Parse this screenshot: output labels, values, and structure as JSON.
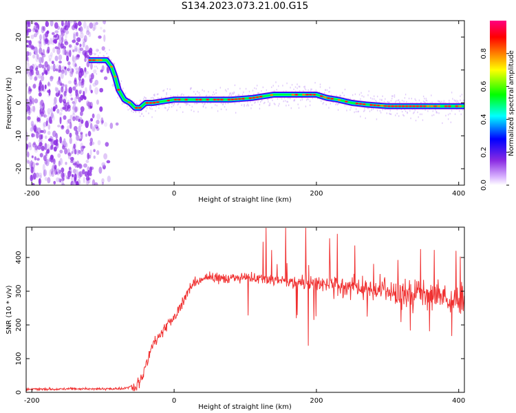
{
  "title": "S134.2023.073.21.00.G15",
  "colors": {
    "snr_line": "#f03030",
    "scatter_noise": "#8a2be2",
    "colormap": [
      "#ffffff",
      "#d9b3ff",
      "#8a2be2",
      "#0000ff",
      "#00ffff",
      "#00ff00",
      "#ffff00",
      "#ff8000",
      "#ff0000",
      "#ff0080"
    ]
  },
  "chart_data": [
    {
      "type": "heatmap",
      "title": "",
      "xlabel": "Height of straight line (km)",
      "ylabel": "Frequency (Hz)",
      "xlim": [
        -208,
        408
      ],
      "ylim": [
        -25,
        25
      ],
      "x_ticks": [
        -200,
        0,
        200,
        400
      ],
      "y_ticks": [
        -20,
        -10,
        0,
        10,
        20
      ],
      "grid": false,
      "series": [
        {
          "description": "Dominant frequency ridge (peak normalized amplitude) versus height",
          "x": [
            -120,
            -105,
            -95,
            -88,
            -83,
            -78,
            -70,
            -62,
            -55,
            -48,
            -40,
            -30,
            -15,
            0,
            20,
            50,
            80,
            110,
            140,
            170,
            200,
            215,
            230,
            250,
            270,
            300,
            330,
            360,
            380,
            400,
            408
          ],
          "y": [
            13,
            13,
            13,
            11,
            8,
            4,
            1,
            0,
            -1.5,
            -1.5,
            0,
            0,
            0.5,
            1,
            1,
            1,
            1,
            1.5,
            2.5,
            2.5,
            2.5,
            1.5,
            1,
            0,
            -0.5,
            -1,
            -1,
            -1,
            -1,
            -1,
            -1
          ]
        }
      ],
      "colorbar": {
        "label": "Normalized spectral amplitude",
        "range": [
          0,
          1
        ],
        "ticks": [
          0.0,
          0.2,
          0.4,
          0.6,
          0.8
        ]
      }
    },
    {
      "type": "line",
      "title": "",
      "xlabel": "Height of straight line (km)",
      "ylabel": "SNR (10 * v/v)",
      "xlim": [
        -208,
        408
      ],
      "ylim": [
        0,
        490
      ],
      "x_ticks": [
        -200,
        0,
        200,
        400
      ],
      "y_ticks": [
        0,
        100,
        200,
        300,
        400
      ],
      "grid": false,
      "series": [
        {
          "description": "SNR trend (center of noisy trace) versus height",
          "x": [
            -208,
            -150,
            -100,
            -70,
            -55,
            -45,
            -40,
            -30,
            -20,
            -10,
            0,
            10,
            20,
            30,
            50,
            80,
            100,
            150,
            200,
            250,
            300,
            350,
            400,
            408
          ],
          "y": [
            10,
            10,
            10,
            12,
            20,
            40,
            80,
            140,
            170,
            200,
            220,
            260,
            300,
            330,
            340,
            340,
            340,
            330,
            320,
            310,
            300,
            290,
            280,
            280
          ]
        }
      ]
    }
  ]
}
